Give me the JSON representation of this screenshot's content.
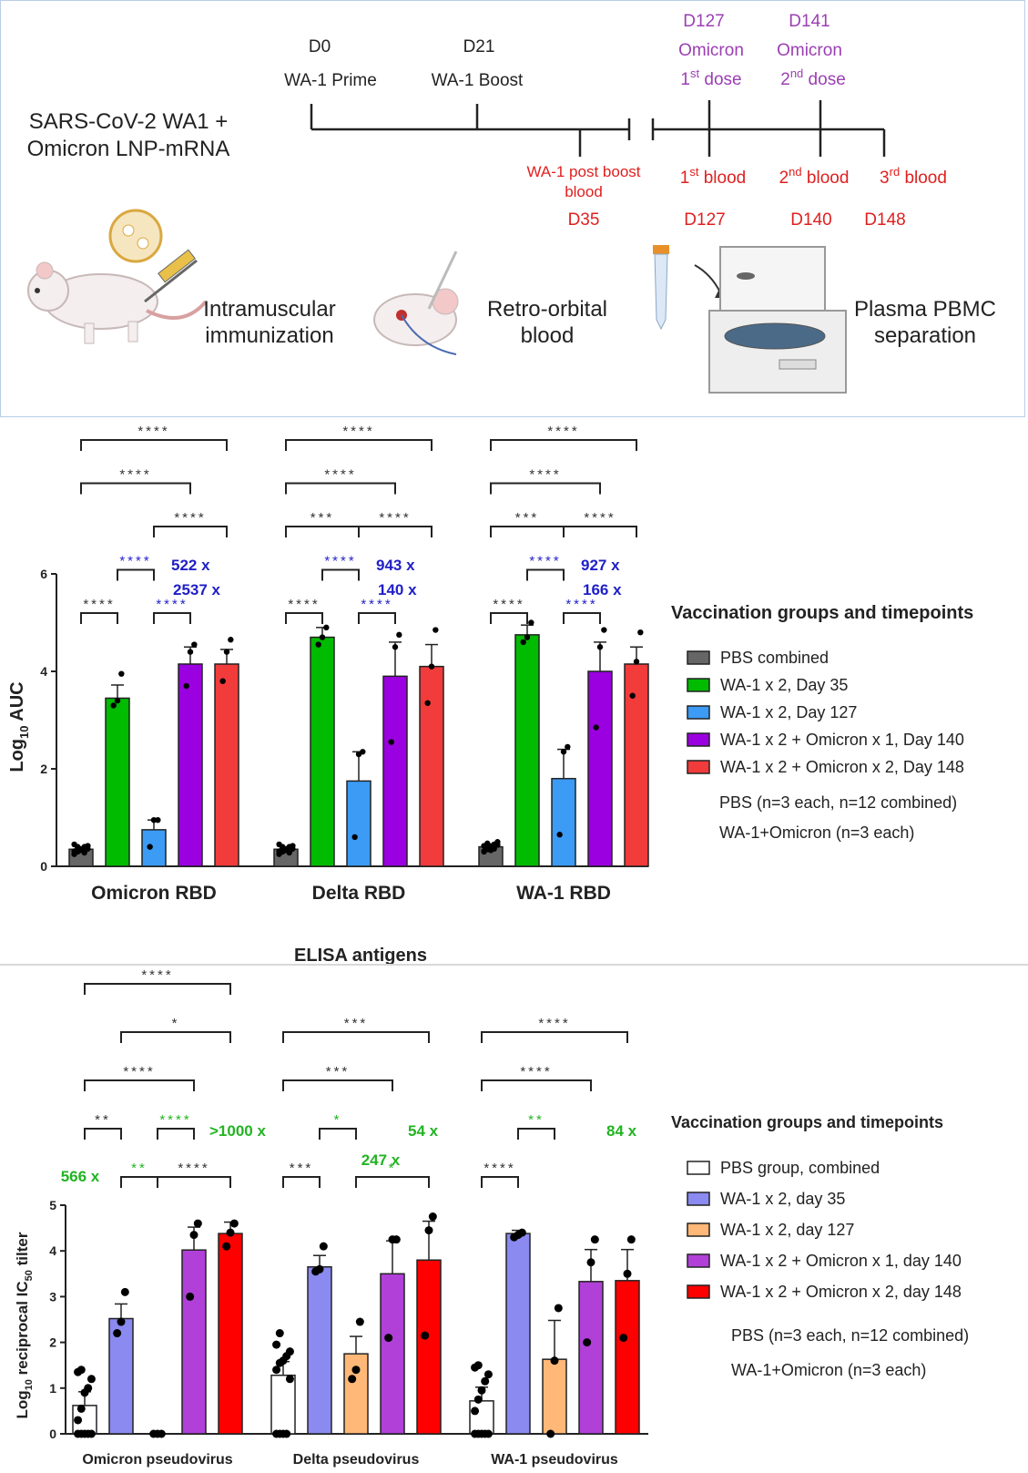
{
  "colors": {
    "timeline_purple": "#9b3fb3",
    "timeline_red": "#e02020",
    "ratio_blue": "#1f1fc8",
    "ratio_green": "#22b422",
    "elisa_fill": [
      "#666666",
      "#00bb00",
      "#3b9bf5",
      "#9a00e0",
      "#f23b3b"
    ],
    "neut_fill": [
      "#ffffff",
      "#8a8af0",
      "#ffb877",
      "#b040d8",
      "#ff0000"
    ]
  },
  "timeline": {
    "vaccine": [
      "SARS-CoV-2 WA1 +",
      "Omicron LNP-mRNA"
    ],
    "top": [
      {
        "day": "D0",
        "label": "WA-1 Prime"
      },
      {
        "day": "D21",
        "label": "WA-1 Boost"
      },
      {
        "day": "D127",
        "line2": "Omicron",
        "sup": "st",
        "line3": "1",
        "rest": " dose"
      },
      {
        "day": "D141",
        "line2": "Omicron",
        "sup": "nd",
        "line3": "2",
        "rest": " dose"
      }
    ],
    "bottom": [
      {
        "l1": "WA-1 post boost",
        "l2": "blood",
        "day": "D35"
      },
      {
        "pre": "1",
        "sup": "st",
        "post": " blood",
        "day": "D127"
      },
      {
        "pre": "2",
        "sup": "nd",
        "post": " blood",
        "day": "D140"
      },
      {
        "pre": "3",
        "sup": "rd",
        "post": " blood",
        "day": "D148"
      }
    ],
    "steps": [
      {
        "l1": "Intramuscular",
        "l2": "immunization",
        "icon": "mouse-syringe-icon"
      },
      {
        "l1": "Retro-orbital",
        "l2": "blood",
        "icon": "mouse-head-icon"
      },
      {
        "l1": "Plasma PBMC",
        "l2": "separation",
        "icon": "centrifuge-icon"
      }
    ]
  },
  "chart_data": [
    {
      "type": "bar",
      "ylabel": "Log10 AUC",
      "ylabel_main": "Log",
      "ylabel_sub": "10",
      "ylabel_rest": " AUC",
      "xlabel": "ELISA antigens",
      "ylim": [
        0,
        6
      ],
      "yticks": [
        0,
        2,
        4,
        6
      ],
      "categories": [
        "Omicron RBD",
        "Delta RBD",
        "WA-1 RBD"
      ],
      "legend_title": "Vaccination groups and timepoints",
      "series": [
        {
          "name": "PBS combined",
          "values": [
            0.35,
            0.35,
            0.4
          ],
          "errors": [
            0.05,
            0.05,
            0.06
          ]
        },
        {
          "name": "WA-1 x 2, Day 35",
          "values": [
            3.45,
            4.7,
            4.75
          ],
          "errors": [
            0.27,
            0.2,
            0.2
          ]
        },
        {
          "name": "WA-1 x 2, Day 127",
          "values": [
            0.75,
            1.75,
            1.8
          ],
          "errors": [
            0.2,
            0.6,
            0.6
          ]
        },
        {
          "name": "WA-1 x 2 + Omicron x 1, Day 140",
          "values": [
            4.15,
            3.9,
            4.0
          ],
          "errors": [
            0.35,
            0.7,
            0.6
          ]
        },
        {
          "name": "WA-1 x 2 + Omicron x 2, Day 148",
          "values": [
            4.15,
            4.1,
            4.15
          ],
          "errors": [
            0.3,
            0.45,
            0.35
          ]
        }
      ],
      "points": [
        [
          [
            0.25,
            0.3,
            0.35,
            0.4,
            0.42,
            0.45,
            0.38,
            0.33,
            0.28,
            0.36,
            0.31,
            0.4
          ],
          [
            3.3,
            3.4,
            3.95
          ],
          [
            0.4,
            0.95,
            0.95
          ],
          [
            3.7,
            4.4,
            4.55
          ],
          [
            3.8,
            4.4,
            4.65
          ]
        ],
        [
          [
            0.25,
            0.3,
            0.35,
            0.4,
            0.42,
            0.45,
            0.38,
            0.33,
            0.28,
            0.36,
            0.31,
            0.4
          ],
          [
            4.55,
            4.7,
            4.9
          ],
          [
            0.6,
            2.3,
            2.35
          ],
          [
            2.55,
            4.5,
            4.75
          ],
          [
            3.35,
            4.1,
            4.85
          ]
        ],
        [
          [
            0.3,
            0.35,
            0.4,
            0.45,
            0.5,
            0.42,
            0.38,
            0.33,
            0.36,
            0.44,
            0.31,
            0.47
          ],
          [
            4.6,
            4.7,
            5.0
          ],
          [
            0.65,
            2.35,
            2.45
          ],
          [
            2.85,
            4.5,
            4.85
          ],
          [
            3.5,
            4.2,
            4.8
          ]
        ]
      ],
      "notes": [
        "PBS (n=3 each, n=12 combined)",
        "WA-1+Omicron (n=3 each)"
      ],
      "brackets": [
        {
          "group": 0,
          "a": 0,
          "b": 4,
          "level": 0,
          "label": "****",
          "color": "#333"
        },
        {
          "group": 0,
          "a": 0,
          "b": 3,
          "level": 1,
          "label": "****",
          "color": "#333"
        },
        {
          "group": 0,
          "a": 2,
          "b": 4,
          "level": 2,
          "label": "****",
          "color": "#333"
        },
        {
          "group": 0,
          "a": 1,
          "b": 2,
          "level": 3,
          "label": "****",
          "color": "#1f1fc8"
        },
        {
          "group": 0,
          "a": 0,
          "b": 1,
          "level": 4,
          "label": "****",
          "color": "#333"
        },
        {
          "group": 0,
          "a": 2,
          "b": 3,
          "level": 4,
          "label": "****",
          "color": "#1f1fc8"
        },
        {
          "group": 1,
          "a": 0,
          "b": 4,
          "level": 0,
          "label": "****",
          "color": "#333"
        },
        {
          "group": 1,
          "a": 0,
          "b": 3,
          "level": 1,
          "label": "****",
          "color": "#333"
        },
        {
          "group": 1,
          "a": 0,
          "b": 2,
          "level": 2,
          "label": "***",
          "color": "#333"
        },
        {
          "group": 1,
          "a": 2,
          "b": 4,
          "level": 2,
          "label": "****",
          "color": "#333"
        },
        {
          "group": 1,
          "a": 1,
          "b": 2,
          "level": 3,
          "label": "****",
          "color": "#1f1fc8"
        },
        {
          "group": 1,
          "a": 0,
          "b": 1,
          "level": 4,
          "label": "****",
          "color": "#333"
        },
        {
          "group": 1,
          "a": 2,
          "b": 3,
          "level": 4,
          "label": "****",
          "color": "#1f1fc8"
        },
        {
          "group": 2,
          "a": 0,
          "b": 4,
          "level": 0,
          "label": "****",
          "color": "#333"
        },
        {
          "group": 2,
          "a": 0,
          "b": 3,
          "level": 1,
          "label": "****",
          "color": "#333"
        },
        {
          "group": 2,
          "a": 0,
          "b": 2,
          "level": 2,
          "label": "***",
          "color": "#333"
        },
        {
          "group": 2,
          "a": 2,
          "b": 4,
          "level": 2,
          "label": "****",
          "color": "#333"
        },
        {
          "group": 2,
          "a": 1,
          "b": 2,
          "level": 3,
          "label": "****",
          "color": "#1f1fc8"
        },
        {
          "group": 2,
          "a": 0,
          "b": 1,
          "level": 4,
          "label": "****",
          "color": "#333"
        },
        {
          "group": 2,
          "a": 2,
          "b": 3,
          "level": 4,
          "label": "****",
          "color": "#1f1fc8"
        }
      ],
      "fold_labels": [
        {
          "group": 0,
          "top": "522 x",
          "bottom": "2537 x"
        },
        {
          "group": 1,
          "top": "943 x",
          "bottom": "140 x"
        },
        {
          "group": 2,
          "top": "927 x",
          "bottom": "166 x"
        }
      ]
    },
    {
      "type": "bar",
      "ylabel": "Log10 reciprocal IC50 tilter",
      "ylabel_main": "Log",
      "ylabel_sub": "10",
      "ylabel_mid": " reciprocal IC",
      "ylabel_sub2": "50",
      "ylabel_rest": " tilter",
      "ylim": [
        0,
        5
      ],
      "yticks": [
        0,
        1,
        2,
        3,
        4,
        5
      ],
      "categories": [
        "Omicron pseudovirus",
        "Delta pseudovirus",
        "WA-1 pseudovirus"
      ],
      "legend_title": "Vaccination groups and timepoints",
      "series": [
        {
          "name": "PBS group, combined",
          "values": [
            0.62,
            1.28,
            0.72
          ],
          "errors": [
            0.3,
            0.3,
            0.3
          ]
        },
        {
          "name": "WA-1 x 2, day 35",
          "values": [
            2.52,
            3.65,
            4.38
          ],
          "errors": [
            0.32,
            0.25,
            0.07
          ]
        },
        {
          "name": "WA-1 x 2, day 127",
          "values": [
            0.0,
            1.75,
            1.63
          ],
          "errors": [
            0.0,
            0.38,
            0.85
          ]
        },
        {
          "name": "WA-1 x 2 + Omicron x 1, day 140",
          "values": [
            4.02,
            3.5,
            3.33
          ],
          "errors": [
            0.5,
            0.72,
            0.7
          ]
        },
        {
          "name": "WA-1 x 2 + Omicron x 2, day 148",
          "values": [
            4.38,
            3.8,
            3.35
          ],
          "errors": [
            0.25,
            0.85,
            0.68
          ]
        }
      ],
      "points": [
        [
          [
            0.0,
            0.0,
            0.0,
            0.0,
            0.0,
            0.3,
            0.55,
            0.9,
            1.0,
            1.2,
            1.35,
            1.4
          ],
          [
            2.2,
            2.45,
            3.1
          ],
          [
            0.0,
            0.0,
            0.0
          ],
          [
            3.0,
            4.35,
            4.6
          ],
          [
            4.1,
            4.4,
            4.6
          ]
        ],
        [
          [
            0.0,
            0.0,
            0.0,
            0.0,
            1.2,
            1.4,
            1.55,
            1.6,
            1.7,
            1.8,
            1.95,
            2.2
          ],
          [
            3.55,
            3.6,
            4.1
          ],
          [
            1.2,
            1.4,
            2.45
          ],
          [
            2.1,
            4.25,
            4.25
          ],
          [
            2.15,
            4.45,
            4.75
          ]
        ],
        [
          [
            0.0,
            0.0,
            0.0,
            0.0,
            0.0,
            0.5,
            0.75,
            0.95,
            1.15,
            1.3,
            1.45,
            1.5
          ],
          [
            4.3,
            4.35,
            4.4
          ],
          [
            0.0,
            1.6,
            2.75
          ],
          [
            2.0,
            3.75,
            4.25
          ],
          [
            2.1,
            3.5,
            4.25
          ]
        ]
      ],
      "notes": [
        "PBS (n=3 each, n=12 combined)",
        "WA-1+Omicron (n=3 each)"
      ],
      "brackets": [
        {
          "group": 0,
          "a": 0,
          "b": 4,
          "level": 0,
          "label": "****",
          "color": "#333"
        },
        {
          "group": 0,
          "a": 1,
          "b": 4,
          "level": 1,
          "label": "*",
          "color": "#333"
        },
        {
          "group": 0,
          "a": 0,
          "b": 3,
          "level": 2,
          "label": "****",
          "color": "#333"
        },
        {
          "group": 0,
          "a": 0,
          "b": 1,
          "level": 3,
          "label": "**",
          "color": "#333"
        },
        {
          "group": 0,
          "a": 2,
          "b": 3,
          "level": 3,
          "label": "****",
          "color": "#22b422"
        },
        {
          "group": 0,
          "a": 1,
          "b": 2,
          "level": 4,
          "label": "**",
          "color": "#22b422"
        },
        {
          "group": 0,
          "a": 2,
          "b": 4,
          "level": 4,
          "label": "****",
          "color": "#333"
        },
        {
          "group": 1,
          "a": 0,
          "b": 4,
          "level": 1,
          "label": "***",
          "color": "#333"
        },
        {
          "group": 1,
          "a": 0,
          "b": 3,
          "level": 2,
          "label": "***",
          "color": "#333"
        },
        {
          "group": 1,
          "a": 1,
          "b": 2,
          "level": 3,
          "label": "*",
          "color": "#22b422"
        },
        {
          "group": 1,
          "a": 0,
          "b": 1,
          "level": 4,
          "label": "***",
          "color": "#333"
        },
        {
          "group": 1,
          "a": 2,
          "b": 4,
          "level": 4,
          "label": "*",
          "color": "#22b422"
        },
        {
          "group": 2,
          "a": 0,
          "b": 4,
          "level": 1,
          "label": "****",
          "color": "#333"
        },
        {
          "group": 2,
          "a": 0,
          "b": 3,
          "level": 2,
          "label": "****",
          "color": "#333"
        },
        {
          "group": 2,
          "a": 1,
          "b": 2,
          "level": 3,
          "label": "**",
          "color": "#22b422"
        },
        {
          "group": 2,
          "a": 0,
          "b": 1,
          "level": 4,
          "label": "****",
          "color": "#333"
        }
      ],
      "fold_labels": [
        {
          "group": 0,
          "text": "566 x",
          "pos": "left-low"
        },
        {
          "group": 0,
          "text": ">1000 x",
          "pos": "right-high"
        },
        {
          "group": 1,
          "text": "54 x",
          "pos": "right-high"
        },
        {
          "group": 1,
          "text": "247 x",
          "pos": "mid-low"
        },
        {
          "group": 2,
          "text": "84 x",
          "pos": "right-high"
        }
      ]
    }
  ]
}
